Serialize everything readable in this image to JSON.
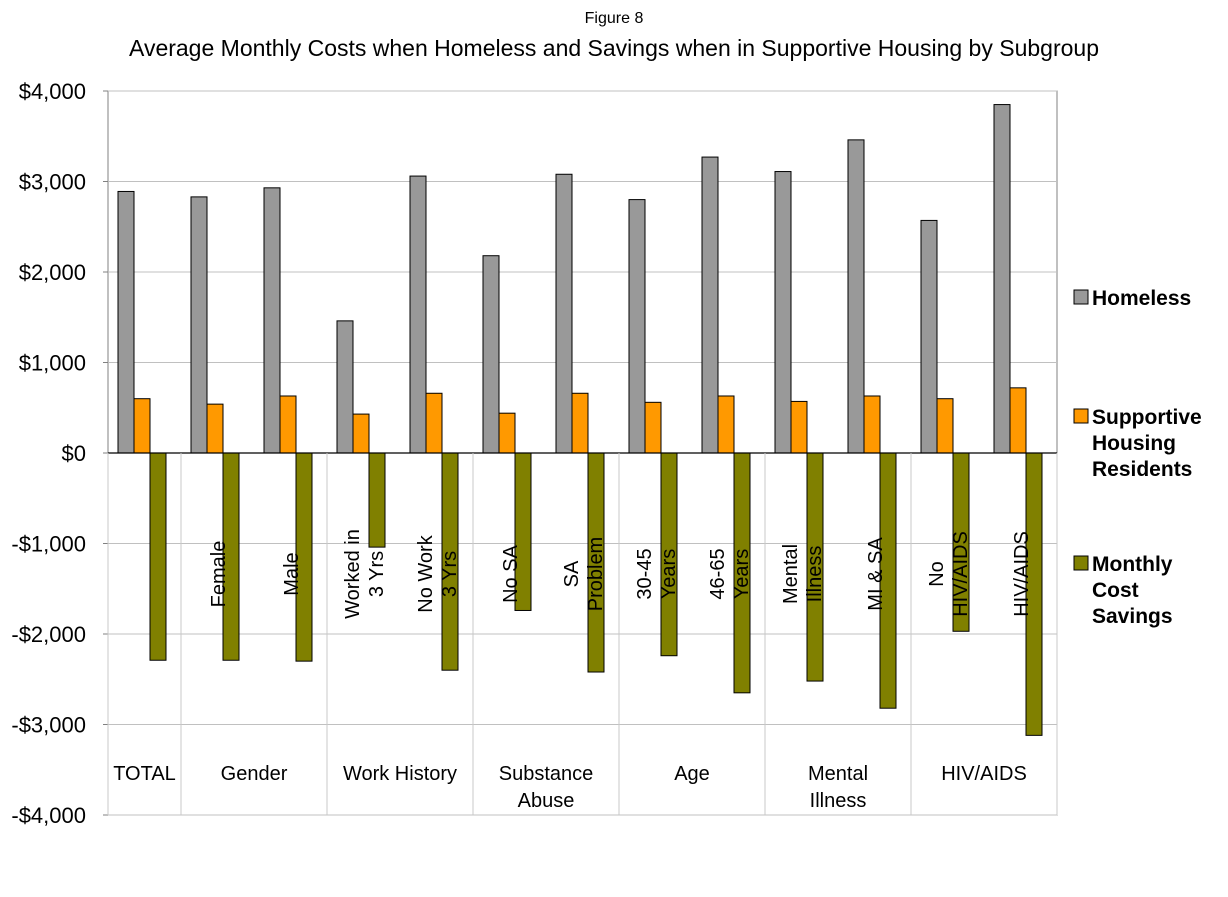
{
  "chart_data": {
    "type": "bar",
    "figure_label": "Figure 8",
    "title": "Average Monthly Costs when Homeless and Savings when in Supportive Housing by Subgroup",
    "xlabel": "",
    "ylabel": "",
    "ylim": [
      -4000,
      4000
    ],
    "y_ticks": [
      "$4,000",
      "$3,000",
      "$2,000",
      "$1,000",
      "$0",
      "-$1,000",
      "-$2,000",
      "-$3,000",
      "-$4,000"
    ],
    "y_tick_values": [
      4000,
      3000,
      2000,
      1000,
      0,
      -1000,
      -2000,
      -3000,
      -4000
    ],
    "grid": true,
    "legend_position": "right",
    "categories": [
      "TOTAL",
      "Female",
      "Male",
      "Worked in 3 Yrs",
      "No Work 3 Yrs",
      "No SA",
      "SA Problem",
      "30-45 Years",
      "46-65 Years",
      "Mental Illness",
      "MI & SA",
      "No HIV/AIDS",
      "HIV/AIDS"
    ],
    "category_label_lines": [
      [],
      [
        "Female"
      ],
      [
        "Male"
      ],
      [
        "Worked in",
        "3 Yrs"
      ],
      [
        "No Work",
        "3 Yrs"
      ],
      [
        "No SA"
      ],
      [
        "SA",
        "Problem"
      ],
      [
        "30-45",
        "Years"
      ],
      [
        "46-65",
        "Years"
      ],
      [
        "Mental",
        "Illness"
      ],
      [
        "MI & SA"
      ],
      [
        "No",
        "HIV/AIDS"
      ],
      [
        "HIV/AIDS"
      ]
    ],
    "groups": [
      {
        "label_lines": [
          "TOTAL"
        ],
        "start": 0,
        "end": 0
      },
      {
        "label_lines": [
          "Gender"
        ],
        "start": 1,
        "end": 2
      },
      {
        "label_lines": [
          "Work History"
        ],
        "start": 3,
        "end": 4
      },
      {
        "label_lines": [
          "Substance",
          "Abuse"
        ],
        "start": 5,
        "end": 6
      },
      {
        "label_lines": [
          "Age"
        ],
        "start": 7,
        "end": 8
      },
      {
        "label_lines": [
          "Mental",
          "Illness"
        ],
        "start": 9,
        "end": 10
      },
      {
        "label_lines": [
          "HIV/AIDS"
        ],
        "start": 11,
        "end": 12
      }
    ],
    "series": [
      {
        "name": "Homeless",
        "color": "#999999",
        "values": [
          2890,
          2830,
          2930,
          1460,
          3060,
          2180,
          3080,
          2800,
          3270,
          3110,
          3460,
          2570,
          3850
        ]
      },
      {
        "name": "Supportive Housing Residents",
        "color": "#FF9900",
        "values": [
          600,
          540,
          630,
          430,
          660,
          440,
          660,
          560,
          630,
          570,
          630,
          600,
          720
        ]
      },
      {
        "name": "Monthly Cost Savings",
        "color": "#808000",
        "values": [
          -2290,
          -2290,
          -2300,
          -1040,
          -2400,
          -1740,
          -2420,
          -2240,
          -2650,
          -2520,
          -2820,
          -1970,
          -3120
        ]
      }
    ],
    "legend_entries": [
      {
        "lines": [
          "Homeless"
        ],
        "color": "#999999"
      },
      {
        "lines": [
          "Supportive",
          "Housing",
          "Residents"
        ],
        "color": "#FF9900"
      },
      {
        "lines": [
          "Monthly",
          "Cost",
          "Savings"
        ],
        "color": "#808000"
      }
    ]
  }
}
